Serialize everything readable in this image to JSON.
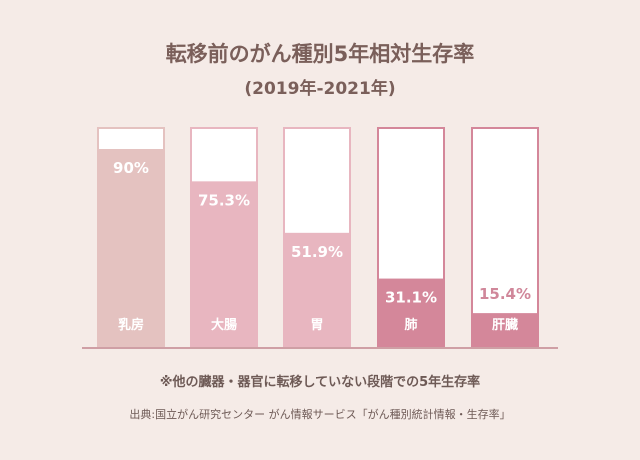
{
  "chart_data": {
    "type": "bar",
    "title": "転移前のがん種別5年相対生存率",
    "subtitle": "(2019年-2021年)",
    "categories": [
      "乳房",
      "大腸",
      "胃",
      "肺",
      "肝臓"
    ],
    "values": [
      90,
      75.3,
      51.9,
      31.1,
      15.4
    ],
    "value_labels": [
      "90%",
      "75.3%",
      "51.9%",
      "31.1%",
      "15.4%"
    ],
    "ylim": [
      0,
      100
    ],
    "colors": [
      "#e4c2c0",
      "#e8b6c0",
      "#e8b6c0",
      "#d4879a",
      "#d4879a"
    ],
    "frame_colors": [
      "#e4c2c0",
      "#e8b6c0",
      "#e8b6c0",
      "#d4879a",
      "#d4879a"
    ],
    "note": "※他の臓器・器官に転移していない段階での5年生存率",
    "source": "出典:国立がん研究センター がん情報サービス「がん種別統計情報・生存率」"
  }
}
